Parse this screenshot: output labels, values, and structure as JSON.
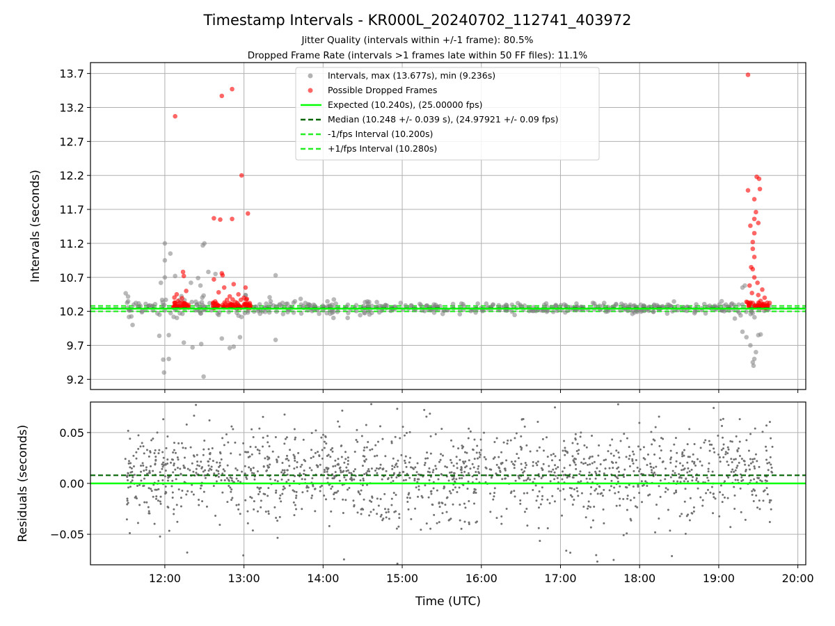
{
  "chart_data": {
    "type": "scatter",
    "title": "Timestamp Intervals - KR000L_20240702_112741_403972",
    "subtitle_lines": [
      "Jitter Quality (intervals within +/-1 frame): 80.5%",
      "Dropped Frame Rate (intervals >1 frames late within 50 FF files): 11.1%"
    ],
    "x_ticks": [
      "12:00",
      "13:00",
      "14:00",
      "15:00",
      "16:00",
      "17:00",
      "18:00",
      "19:00",
      "20:00"
    ],
    "x_tick_hours": [
      12,
      13,
      14,
      15,
      16,
      17,
      18,
      19,
      20
    ],
    "xlim_hours": [
      11.06,
      20.1
    ],
    "xlabel": "Time (UTC)",
    "top_panel": {
      "ylabel": "Intervals (seconds)",
      "ylim": [
        9.05,
        13.86
      ],
      "y_ticks": [
        "9.2",
        "9.7",
        "10.2",
        "10.7",
        "11.2",
        "11.7",
        "12.2",
        "12.7",
        "13.2",
        "13.7"
      ],
      "grid": true,
      "legend_position": "upper center",
      "expected": 10.24,
      "median": 10.248,
      "lower_bound": 10.2,
      "upper_bound": 10.28,
      "legend": [
        "Intervals, max (13.677s), min (9.236s)",
        "Possible Dropped Frames",
        "Expected (10.240s), (25.00000 fps)",
        "Median (10.248 +/- 0.039 s), (24.97921 +/- 0.09 fps)",
        "-1/fps Interval (10.200s)",
        "+1/fps Interval (10.280s)"
      ],
      "dropped_frames": [
        {
          "x": 12.13,
          "y": 13.07
        },
        {
          "x": 12.72,
          "y": 13.37
        },
        {
          "x": 12.85,
          "y": 13.47
        },
        {
          "x": 12.97,
          "y": 12.2
        },
        {
          "x": 13.05,
          "y": 11.64
        },
        {
          "x": 12.62,
          "y": 11.57
        },
        {
          "x": 12.7,
          "y": 11.55
        },
        {
          "x": 12.85,
          "y": 11.56
        },
        {
          "x": 12.23,
          "y": 10.78
        },
        {
          "x": 12.24,
          "y": 10.72
        },
        {
          "x": 12.72,
          "y": 10.76
        },
        {
          "x": 12.73,
          "y": 10.73
        },
        {
          "x": 12.62,
          "y": 10.67
        },
        {
          "x": 12.87,
          "y": 10.6
        },
        {
          "x": 12.75,
          "y": 10.55
        },
        {
          "x": 13.02,
          "y": 10.55
        },
        {
          "x": 12.68,
          "y": 10.48
        },
        {
          "x": 12.93,
          "y": 10.45
        },
        {
          "x": 12.27,
          "y": 10.5
        },
        {
          "x": 12.15,
          "y": 10.45
        },
        {
          "x": 12.82,
          "y": 10.42
        },
        {
          "x": 13.0,
          "y": 10.4
        },
        {
          "x": 19.37,
          "y": 13.68
        },
        {
          "x": 19.48,
          "y": 12.18
        },
        {
          "x": 19.51,
          "y": 12.15
        },
        {
          "x": 19.37,
          "y": 11.98
        },
        {
          "x": 19.52,
          "y": 12.0
        },
        {
          "x": 19.45,
          "y": 11.85
        },
        {
          "x": 19.47,
          "y": 11.66
        },
        {
          "x": 19.45,
          "y": 11.56
        },
        {
          "x": 19.4,
          "y": 11.46
        },
        {
          "x": 19.5,
          "y": 11.5
        },
        {
          "x": 19.45,
          "y": 11.35
        },
        {
          "x": 19.43,
          "y": 11.22
        },
        {
          "x": 19.43,
          "y": 11.12
        },
        {
          "x": 19.45,
          "y": 11.0
        },
        {
          "x": 19.41,
          "y": 10.85
        },
        {
          "x": 19.43,
          "y": 10.82
        },
        {
          "x": 19.45,
          "y": 10.7
        },
        {
          "x": 19.49,
          "y": 10.62
        },
        {
          "x": 19.39,
          "y": 10.58
        },
        {
          "x": 19.55,
          "y": 10.52
        },
        {
          "x": 19.42,
          "y": 10.47
        },
        {
          "x": 19.5,
          "y": 10.44
        },
        {
          "x": 19.58,
          "y": 10.4
        }
      ],
      "outliers": [
        {
          "x": 12.0,
          "y": 11.2
        },
        {
          "x": 12.07,
          "y": 11.05
        },
        {
          "x": 12.0,
          "y": 10.95
        },
        {
          "x": 12.48,
          "y": 11.17
        },
        {
          "x": 12.5,
          "y": 11.2
        },
        {
          "x": 12.0,
          "y": 10.7
        },
        {
          "x": 11.95,
          "y": 10.62
        },
        {
          "x": 12.55,
          "y": 10.78
        },
        {
          "x": 12.42,
          "y": 10.69
        },
        {
          "x": 13.4,
          "y": 10.73
        },
        {
          "x": 12.45,
          "y": 10.58
        },
        {
          "x": 12.64,
          "y": 10.75
        },
        {
          "x": 12.13,
          "y": 10.72
        },
        {
          "x": 12.33,
          "y": 10.62
        },
        {
          "x": 11.98,
          "y": 9.49
        },
        {
          "x": 12.05,
          "y": 9.5
        },
        {
          "x": 11.99,
          "y": 9.3
        },
        {
          "x": 12.49,
          "y": 9.24
        },
        {
          "x": 12.35,
          "y": 9.67
        },
        {
          "x": 12.46,
          "y": 9.72
        },
        {
          "x": 12.24,
          "y": 9.74
        },
        {
          "x": 12.82,
          "y": 9.66
        },
        {
          "x": 12.87,
          "y": 9.68
        },
        {
          "x": 11.93,
          "y": 9.84
        },
        {
          "x": 13.4,
          "y": 9.78
        },
        {
          "x": 12.95,
          "y": 9.82
        },
        {
          "x": 12.72,
          "y": 9.8
        },
        {
          "x": 12.05,
          "y": 9.85
        },
        {
          "x": 19.44,
          "y": 9.4
        },
        {
          "x": 19.45,
          "y": 9.5
        },
        {
          "x": 19.43,
          "y": 9.45
        },
        {
          "x": 19.4,
          "y": 9.7
        },
        {
          "x": 19.47,
          "y": 9.6
        },
        {
          "x": 19.5,
          "y": 9.85
        },
        {
          "x": 19.53,
          "y": 9.86
        },
        {
          "x": 19.35,
          "y": 9.82
        },
        {
          "x": 19.3,
          "y": 9.9
        },
        {
          "x": 19.33,
          "y": 10.58
        },
        {
          "x": 19.3,
          "y": 10.55
        }
      ]
    },
    "bottom_panel": {
      "ylabel": "Residuals (seconds)",
      "ylim": [
        -0.08,
        0.08
      ],
      "y_ticks": [
        "−0.05",
        "0.00",
        "0.05"
      ],
      "y_tick_values": [
        -0.05,
        0.0,
        0.05
      ],
      "grid": true,
      "expected_residual": 0.0,
      "median_residual": 0.008
    },
    "colors": {
      "interval_points": "#808080",
      "dropped_points": "#ff0000",
      "expected_line": "#00ff00",
      "median_line": "#006400",
      "bound_lines": "#22ee22",
      "grid": "#b0b0b0"
    }
  }
}
